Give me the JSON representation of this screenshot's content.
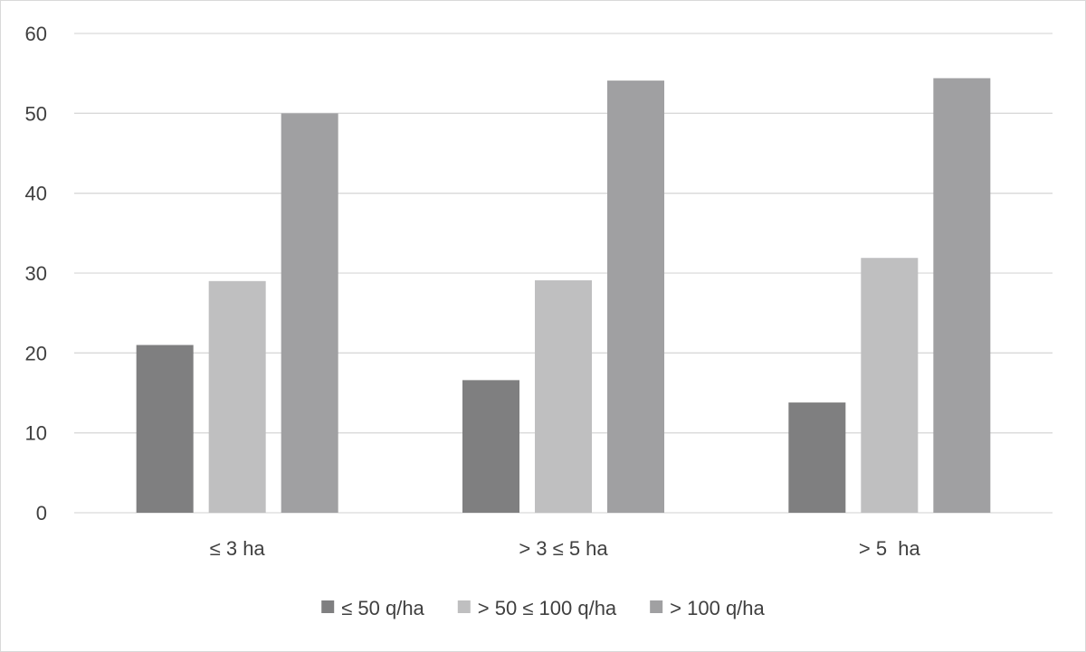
{
  "chart_data": {
    "type": "bar",
    "categories": [
      "≤ 3 ha",
      "> 3 ≤ 5 ha",
      "> 5  ha"
    ],
    "series": [
      {
        "name": "≤ 50 q/ha",
        "values": [
          21,
          16.6,
          13.8
        ],
        "color": "#7f7f80"
      },
      {
        "name": "> 50 ≤ 100 q/ha",
        "values": [
          29,
          29.1,
          31.9
        ],
        "color": "#bfbfc0"
      },
      {
        "name": "> 100 q/ha",
        "values": [
          50,
          54.1,
          54.4
        ],
        "color": "#a0a0a2"
      }
    ],
    "ylim": [
      0,
      60
    ],
    "yticks": [
      0,
      10,
      20,
      30,
      40,
      50,
      60
    ],
    "grid": true,
    "legend_position": "bottom"
  }
}
